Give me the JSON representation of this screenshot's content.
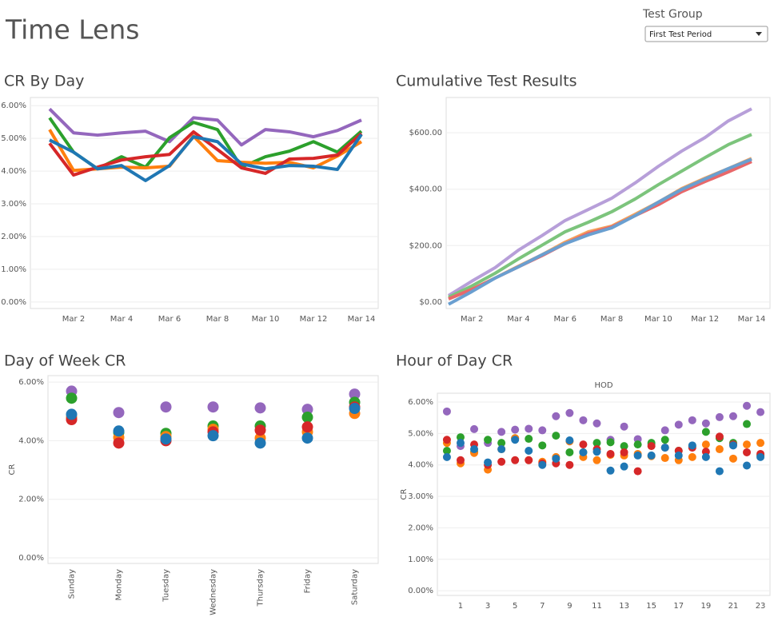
{
  "header": {
    "title": "Time Lens"
  },
  "filter": {
    "label": "Test Group",
    "value": "First Test Period"
  },
  "chart_data": [
    {
      "type": "line",
      "title": "CR By Day",
      "categories": [
        null,
        "Mar 2",
        null,
        "Mar 4",
        null,
        "Mar 6",
        null,
        "Mar 8",
        null,
        "Mar 10",
        null,
        "Mar 12",
        null,
        "Mar 14"
      ],
      "series": [
        {
          "color": "#9467bd",
          "values": [
            5.9,
            5.17,
            5.1,
            5.17,
            5.22,
            4.9,
            5.63,
            5.56,
            4.8,
            5.27,
            5.2,
            5.05,
            5.24,
            5.56
          ]
        },
        {
          "color": "#2ca02c",
          "values": [
            5.63,
            4.58,
            4.07,
            4.44,
            4.12,
            5.02,
            5.49,
            5.27,
            4.12,
            4.44,
            4.61,
            4.9,
            4.58,
            5.22
          ]
        },
        {
          "color": "#ff7f0e",
          "values": [
            5.27,
            4.02,
            4.07,
            4.12,
            4.1,
            4.15,
            5.07,
            4.32,
            4.27,
            4.24,
            4.27,
            4.1,
            4.46,
            4.9
          ]
        },
        {
          "color": "#d62728",
          "values": [
            4.85,
            3.88,
            4.12,
            4.34,
            4.44,
            4.51,
            5.2,
            4.66,
            4.1,
            3.93,
            4.37,
            4.39,
            4.49,
            5.15
          ]
        },
        {
          "color": "#1f77b4",
          "values": [
            4.95,
            4.58,
            4.07,
            4.17,
            3.71,
            4.17,
            5.05,
            4.9,
            4.22,
            4.07,
            4.17,
            4.15,
            4.05,
            5.12
          ]
        }
      ],
      "ylim": [
        -0.2,
        6.25
      ],
      "yticks": [
        {
          "value": 0,
          "label": "0.00%"
        },
        {
          "value": 1,
          "label": "1.00%"
        },
        {
          "value": 2,
          "label": "2.00%"
        },
        {
          "value": 3,
          "label": "3.00%"
        },
        {
          "value": 4,
          "label": "4.00%"
        },
        {
          "value": 5,
          "label": "5.00%"
        },
        {
          "value": 6,
          "label": "6.00%"
        }
      ],
      "grid": true
    },
    {
      "type": "line",
      "title": "Cumulative Test Results",
      "categories": [
        null,
        "Mar 2",
        null,
        "Mar 4",
        null,
        "Mar 6",
        null,
        "Mar 8",
        null,
        "Mar 10",
        null,
        "Mar 12",
        null,
        "Mar 14"
      ],
      "series": [
        {
          "color": "#b79fd9",
          "values": [
            23,
            74,
            122,
            184,
            235,
            289,
            328,
            368,
            422,
            481,
            535,
            583,
            642,
            685
          ]
        },
        {
          "color": "#7cc47c",
          "values": [
            17,
            57,
            102,
            153,
            201,
            249,
            283,
            320,
            365,
            416,
            464,
            512,
            558,
            594
          ]
        },
        {
          "color": "#f5a25c",
          "values": [
            11,
            45,
            85,
            127,
            167,
            212,
            249,
            269,
            311,
            354,
            402,
            439,
            473,
            509
          ]
        },
        {
          "color": "#e8686a",
          "values": [
            11,
            45,
            85,
            125,
            164,
            207,
            243,
            266,
            306,
            345,
            391,
            427,
            461,
            498
          ]
        },
        {
          "color": "#6a9fd0",
          "values": [
            -8,
            37,
            85,
            125,
            167,
            207,
            238,
            263,
            306,
            354,
            399,
            436,
            473,
            506
          ]
        }
      ],
      "ylim": [
        -23,
        725
      ],
      "yticks": [
        {
          "value": 0,
          "label": "$0.00"
        },
        {
          "value": 200,
          "label": "$200.00"
        },
        {
          "value": 400,
          "label": "$400.00"
        },
        {
          "value": 600,
          "label": "$600.00"
        }
      ],
      "grid": true
    },
    {
      "type": "dot",
      "title": "Day of Week CR",
      "ylabel": "CR",
      "categories": [
        "Sunday",
        "Monday",
        "Tuesday",
        "Wednesday",
        "Thursday",
        "Friday",
        "Saturday"
      ],
      "series": [
        {
          "color": "#9467bd",
          "values": [
            5.69,
            4.96,
            5.15,
            5.15,
            5.12,
            5.07,
            5.59
          ]
        },
        {
          "color": "#2ca02c",
          "values": [
            5.45,
            4.28,
            4.25,
            4.5,
            4.5,
            4.8,
            5.31
          ]
        },
        {
          "color": "#ff7f0e",
          "values": [
            4.8,
            4.11,
            4.14,
            4.39,
            4.09,
            4.3,
            4.93
          ]
        },
        {
          "color": "#d62728",
          "values": [
            4.72,
            3.92,
            4.0,
            4.3,
            4.36,
            4.47,
            5.15
          ]
        },
        {
          "color": "#1f77b4",
          "values": [
            4.9,
            4.33,
            4.06,
            4.17,
            3.92,
            4.09,
            5.1
          ]
        }
      ],
      "ylim": [
        -0.19,
        6.22
      ],
      "yticks": [
        {
          "value": 0,
          "label": "0.00%"
        },
        {
          "value": 2,
          "label": "2.00%"
        },
        {
          "value": 4,
          "label": "4.00%"
        },
        {
          "value": 6,
          "label": "6.00%"
        }
      ],
      "grid": true
    },
    {
      "type": "scatter",
      "title": "Hour of Day CR",
      "subtitle": "HOD",
      "ylabel": "CR",
      "x": [
        0,
        1,
        2,
        3,
        4,
        5,
        6,
        7,
        8,
        9,
        10,
        11,
        12,
        13,
        14,
        15,
        16,
        17,
        18,
        19,
        20,
        21,
        22,
        23
      ],
      "series": [
        {
          "color": "#9467bd",
          "values": [
            5.7,
            4.6,
            5.14,
            4.7,
            5.05,
            5.12,
            5.15,
            5.1,
            5.55,
            5.65,
            5.42,
            5.32,
            4.8,
            5.22,
            4.82,
            4.65,
            5.1,
            5.28,
            5.42,
            5.32,
            5.52,
            5.55,
            5.88,
            5.68
          ]
        },
        {
          "color": "#2ca02c",
          "values": [
            4.45,
            4.88,
            4.42,
            4.8,
            4.7,
            4.85,
            4.83,
            4.62,
            4.93,
            4.4,
            4.4,
            4.7,
            4.72,
            4.6,
            4.65,
            4.7,
            4.8,
            4.45,
            4.6,
            5.05,
            4.85,
            4.7,
            5.3,
            4.3
          ]
        },
        {
          "color": "#ff7f0e",
          "values": [
            4.7,
            4.05,
            4.38,
            3.85,
            4.5,
            4.85,
            4.15,
            4.1,
            4.25,
            4.75,
            4.25,
            4.15,
            4.32,
            4.3,
            4.35,
            4.28,
            4.22,
            4.15,
            4.25,
            4.65,
            4.5,
            4.2,
            4.65,
            4.7
          ]
        },
        {
          "color": "#d62728",
          "values": [
            4.8,
            4.15,
            4.65,
            4.0,
            4.1,
            4.15,
            4.15,
            4.05,
            4.05,
            4.0,
            4.65,
            4.5,
            4.35,
            4.4,
            3.8,
            4.6,
            4.55,
            4.45,
            4.55,
            4.42,
            4.9,
            4.65,
            4.4,
            4.35
          ]
        },
        {
          "color": "#1f77b4",
          "values": [
            4.25,
            4.7,
            4.5,
            4.08,
            4.5,
            4.8,
            4.45,
            4.0,
            4.2,
            4.78,
            4.4,
            4.42,
            3.82,
            3.95,
            4.3,
            4.3,
            4.55,
            4.3,
            4.62,
            4.25,
            3.8,
            4.62,
            3.98,
            4.25
          ]
        }
      ],
      "xlim": [
        -0.7,
        23.7
      ],
      "xticks": [
        1,
        3,
        5,
        7,
        9,
        11,
        13,
        15,
        17,
        19,
        21,
        23
      ],
      "ylim": [
        -0.15,
        6.28
      ],
      "yticks": [
        {
          "value": 0,
          "label": "0.00%"
        },
        {
          "value": 1,
          "label": "1.00%"
        },
        {
          "value": 2,
          "label": "2.00%"
        },
        {
          "value": 3,
          "label": "3.00%"
        },
        {
          "value": 4,
          "label": "4.00%"
        },
        {
          "value": 5,
          "label": "5.00%"
        },
        {
          "value": 6,
          "label": "6.00%"
        }
      ],
      "grid": true
    }
  ]
}
